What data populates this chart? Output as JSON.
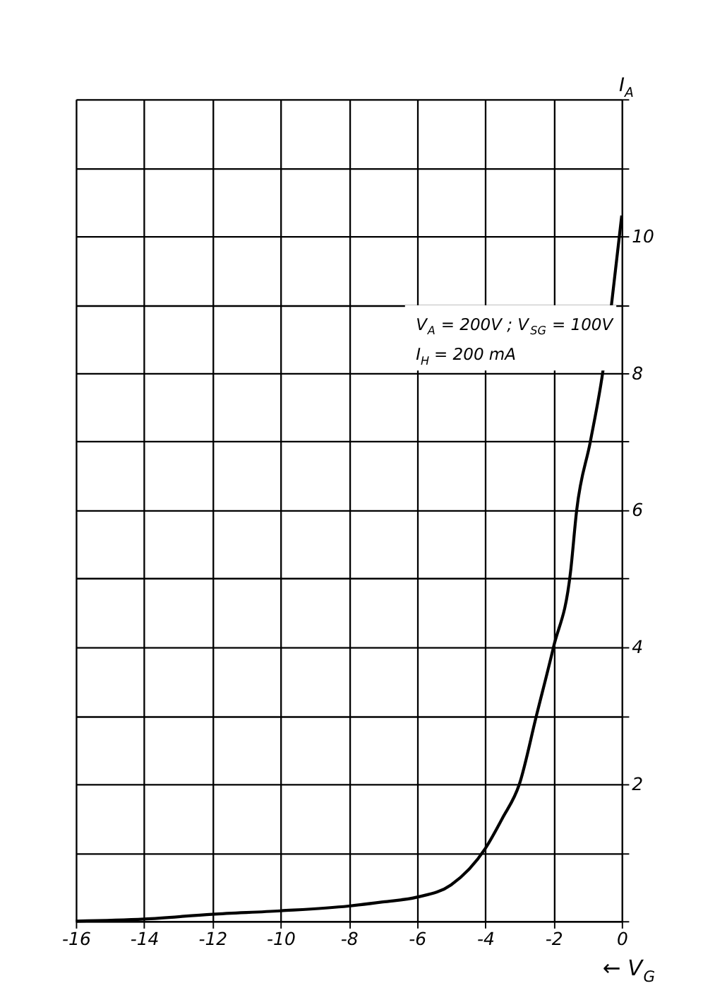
{
  "chart_data": {
    "type": "line",
    "xlabel": "← V$_{G}$",
    "ylabel": "I$_{A}$",
    "annotations": [
      "V$_{A}$ = 200V ; V$_{SG}$ = 100V",
      "I$_{H}$ = 200 mA"
    ],
    "x": [
      -16,
      -14,
      -12,
      -10,
      -8,
      -7,
      -6,
      -5,
      -4,
      -3.5,
      -3,
      -2.5,
      -2,
      -1.5,
      -1.32,
      -0.92,
      -0.56,
      -0.3,
      0
    ],
    "series": [
      {
        "color": "#000000",
        "values": [
          0,
          0.03,
          0.1,
          0.15,
          0.22,
          0.28,
          0.35,
          0.53,
          1.06,
          1.5,
          2.0,
          3.0,
          4.0,
          5.1,
          6.0,
          7.0,
          8.0,
          9.0,
          10.3
        ]
      }
    ],
    "xlim": [
      -16,
      0
    ],
    "xticks": [
      -16,
      -14,
      -12,
      -10,
      -8,
      -6,
      -4,
      -2,
      0
    ],
    "ylim": [
      0,
      12
    ],
    "yticks": [
      {
        "value": 0,
        "label": null
      },
      {
        "value": 1,
        "label": null
      },
      2,
      {
        "value": 3,
        "label": null
      },
      4,
      {
        "value": 5,
        "label": null
      },
      6,
      {
        "value": 7,
        "label": null
      },
      8,
      {
        "value": 9,
        "label": null
      },
      10,
      {
        "value": 11,
        "label": null
      },
      {
        "value": 12,
        "label": null
      }
    ],
    "grid": true,
    "marker": "none",
    "line_style": "solid"
  }
}
